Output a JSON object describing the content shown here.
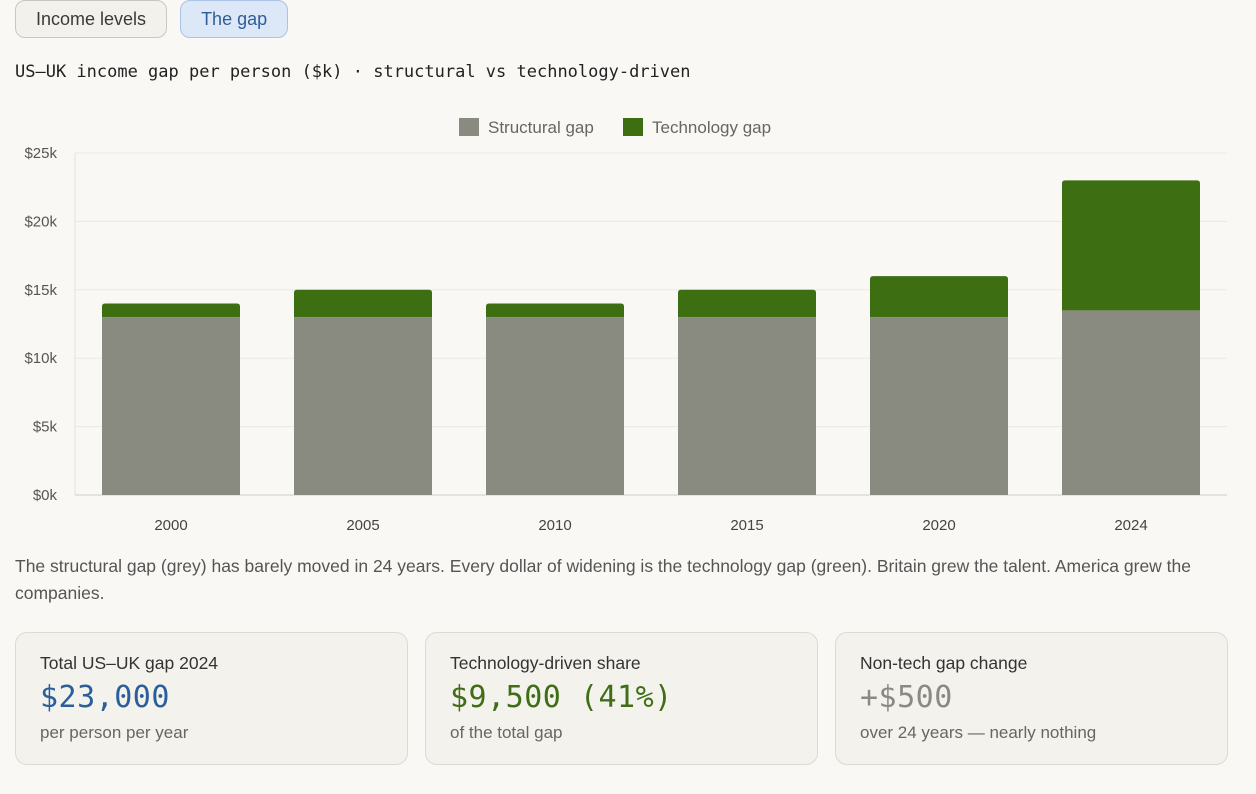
{
  "tabs": [
    {
      "label": "Income levels",
      "active": false
    },
    {
      "label": "The gap",
      "active": true
    }
  ],
  "subtitle": "US–UK income gap per person ($k) · structural vs technology-driven",
  "colors": {
    "structural": "#898a80",
    "technology": "#3d6e12"
  },
  "chart_data": {
    "type": "bar",
    "stacked": true,
    "categories": [
      "2000",
      "2005",
      "2010",
      "2015",
      "2020",
      "2024"
    ],
    "series": [
      {
        "name": "Structural gap",
        "values": [
          13,
          13,
          13,
          13,
          13,
          13.5
        ]
      },
      {
        "name": "Technology gap",
        "values": [
          1,
          2,
          1,
          2,
          3,
          9.5
        ]
      }
    ],
    "ylim": [
      0,
      25
    ],
    "yticks": [
      {
        "value": 0,
        "label": "$0k"
      },
      {
        "value": 5,
        "label": "$5k"
      },
      {
        "value": 10,
        "label": "$10k"
      },
      {
        "value": 15,
        "label": "$15k"
      },
      {
        "value": 20,
        "label": "$20k"
      },
      {
        "value": 25,
        "label": "$25k"
      }
    ],
    "legend_position": "top-center",
    "grid": true
  },
  "caption": "The structural gap (grey) has barely moved in 24 years. Every dollar of widening is the technology gap (green). Britain grew the talent. America grew the companies.",
  "cards": [
    {
      "label": "Total US–UK gap 2024",
      "value": "$23,000",
      "sub": "per person per year"
    },
    {
      "label": "Technology-driven share",
      "value": "$9,500 (41%)",
      "sub": "of the total gap"
    },
    {
      "label": "Non-tech gap change",
      "value": "+$500",
      "sub": "over 24 years — nearly nothing"
    }
  ]
}
